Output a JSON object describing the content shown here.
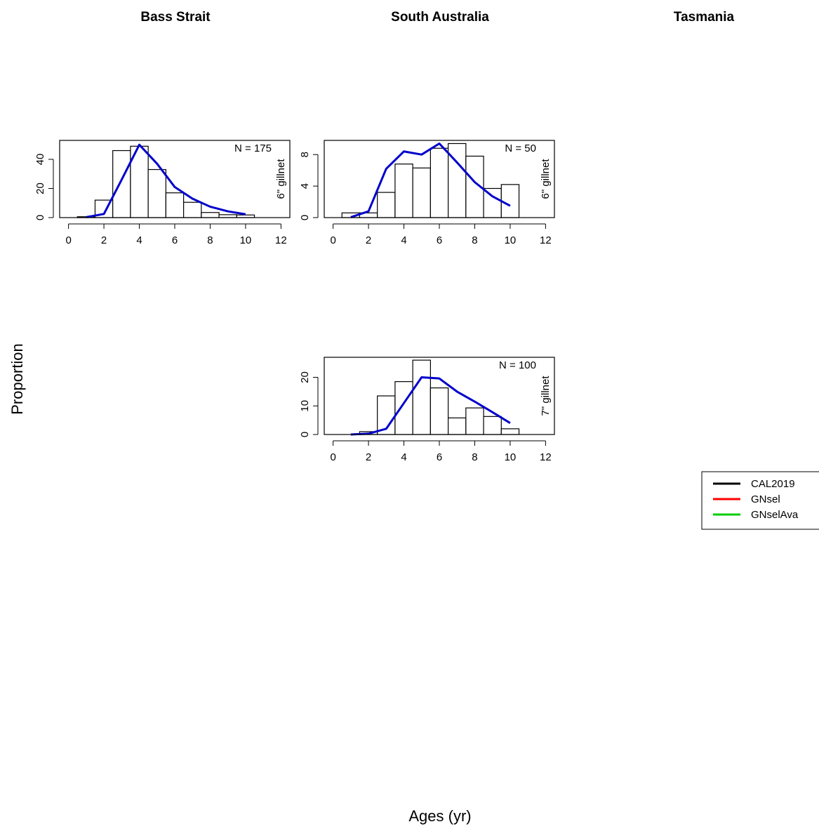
{
  "figure": {
    "ylabel": "Proportion",
    "xlabel": "Ages (yr)",
    "region_titles": [
      "Bass Strait",
      "South Australia",
      "Tasmania"
    ]
  },
  "legend": {
    "entries": [
      {
        "label": "CAL2019",
        "color": "#000000"
      },
      {
        "label": "GNsel",
        "color": "#ff0000"
      },
      {
        "label": "GNselAva",
        "color": "#00cc00"
      }
    ]
  },
  "chart_data": [
    {
      "type": "bar",
      "region": "Bass Strait",
      "gear": "6\" gillnet",
      "n_label": "N = 175",
      "x_ticks": [
        0,
        2,
        4,
        6,
        8,
        10,
        12
      ],
      "y_ticks": [
        0,
        20,
        40
      ],
      "xlim": [
        -0.5,
        12.5
      ],
      "ylim": [
        0,
        53
      ],
      "bars": {
        "x": [
          1,
          2,
          3,
          4,
          5,
          6,
          7,
          8,
          9,
          10
        ],
        "values": [
          0.6,
          12,
          46,
          49,
          33,
          17,
          10.5,
          3.5,
          2,
          1.8
        ]
      },
      "series": [
        {
          "x": [
            1,
            2,
            3,
            4,
            5,
            6,
            7,
            8,
            9,
            10
          ],
          "values": [
            0.3,
            2.5,
            26,
            50,
            37,
            21,
            13,
            7.5,
            4.3,
            2.3
          ],
          "color": "#0000cc"
        }
      ]
    },
    {
      "type": "bar",
      "region": "South Australia",
      "gear": "6\" gillnet",
      "n_label": "N = 50",
      "x_ticks": [
        0,
        2,
        4,
        6,
        8,
        10,
        12
      ],
      "y_ticks": [
        0,
        4,
        8
      ],
      "xlim": [
        -0.5,
        12.5
      ],
      "ylim": [
        0,
        9.8
      ],
      "bars": {
        "x": [
          1,
          2,
          3,
          4,
          5,
          6,
          7,
          8,
          9,
          10
        ],
        "values": [
          0.6,
          0.6,
          3.2,
          6.8,
          6.3,
          8.8,
          9.4,
          7.8,
          3.7,
          4.2
        ]
      },
      "series": [
        {
          "x": [
            1,
            2,
            3,
            4,
            5,
            6,
            7,
            8,
            9,
            10
          ],
          "values": [
            0.05,
            0.8,
            6.2,
            8.4,
            8,
            9.4,
            7,
            4.5,
            2.7,
            1.5
          ],
          "color": "#0000cc"
        }
      ]
    },
    {
      "type": "bar",
      "region": "South Australia",
      "gear": "7\" gillnet",
      "n_label": "N = 100",
      "x_ticks": [
        0,
        2,
        4,
        6,
        8,
        10,
        12
      ],
      "y_ticks": [
        0,
        10,
        20
      ],
      "xlim": [
        -0.5,
        12.5
      ],
      "ylim": [
        0,
        27
      ],
      "bars": {
        "x": [
          1,
          2,
          3,
          4,
          5,
          6,
          7,
          8,
          9,
          10
        ],
        "values": [
          0,
          1,
          13.5,
          18.5,
          26,
          16.3,
          5.8,
          9.3,
          6.3,
          2
        ]
      },
      "series": [
        {
          "x": [
            1,
            2,
            3,
            4,
            5,
            6,
            7,
            8,
            9,
            10
          ],
          "values": [
            0,
            0.3,
            2,
            11,
            20,
            19.6,
            15,
            11.5,
            7.8,
            4
          ],
          "color": "#0000cc"
        }
      ]
    }
  ]
}
